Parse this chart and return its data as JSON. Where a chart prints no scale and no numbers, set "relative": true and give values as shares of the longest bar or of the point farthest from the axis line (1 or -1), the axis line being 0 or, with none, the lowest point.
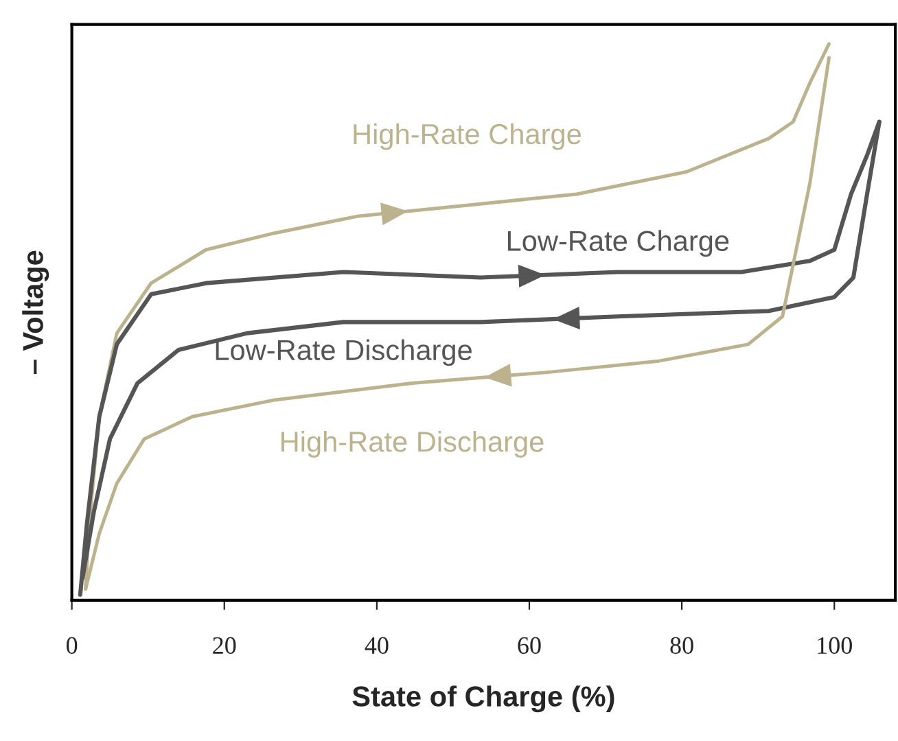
{
  "chart_data": {
    "type": "line",
    "relative": true,
    "xlabel": "State of Charge (%)",
    "ylabel": "– Voltage",
    "xlim": [
      0,
      108
    ],
    "xticks": [
      0,
      20,
      40,
      60,
      80,
      100
    ],
    "grid": false,
    "legend": false,
    "marker": "none",
    "line_style": "solid",
    "series": [
      {
        "name": "High-Rate Charge",
        "color": "#bcb38e",
        "x": [
          1.8,
          2.3,
          3.6,
          5.9,
          10.4,
          17.6,
          26.6,
          37.4,
          51.8,
          66.2,
          80.6,
          91.4,
          94.6,
          96.8,
          99.3
        ],
        "values": [
          0.02,
          0.14,
          0.33,
          0.48,
          0.57,
          0.63,
          0.66,
          0.69,
          0.71,
          0.73,
          0.77,
          0.83,
          0.86,
          0.93,
          1.0
        ]
      },
      {
        "name": "Low-Rate Charge",
        "color": "#555555",
        "x": [
          1.1,
          2.0,
          3.6,
          5.9,
          10.4,
          17.6,
          35.6,
          53.6,
          71.6,
          87.8,
          96.8,
          100.0,
          102.2,
          104.3,
          105.9
        ],
        "values": [
          0.01,
          0.14,
          0.33,
          0.46,
          0.55,
          0.57,
          0.59,
          0.58,
          0.59,
          0.59,
          0.61,
          0.63,
          0.73,
          0.8,
          0.86
        ]
      },
      {
        "name": "Low-Rate Discharge",
        "color": "#555555",
        "x": [
          105.9,
          104.3,
          102.5,
          100.0,
          91.4,
          71.6,
          53.6,
          35.6,
          23.0,
          14.0,
          8.6,
          5.0,
          2.9,
          1.4
        ],
        "values": [
          0.86,
          0.73,
          0.58,
          0.545,
          0.52,
          0.51,
          0.5,
          0.5,
          0.48,
          0.45,
          0.39,
          0.29,
          0.16,
          0.04
        ]
      },
      {
        "name": "High-Rate Discharge",
        "color": "#bcb38e",
        "x": [
          99.3,
          96.8,
          93.2,
          88.7,
          77.0,
          62.6,
          44.6,
          26.6,
          15.8,
          9.5,
          5.9,
          3.6,
          1.8
        ],
        "values": [
          0.975,
          0.75,
          0.51,
          0.46,
          0.43,
          0.41,
          0.39,
          0.36,
          0.33,
          0.29,
          0.21,
          0.12,
          0.02
        ]
      }
    ]
  }
}
